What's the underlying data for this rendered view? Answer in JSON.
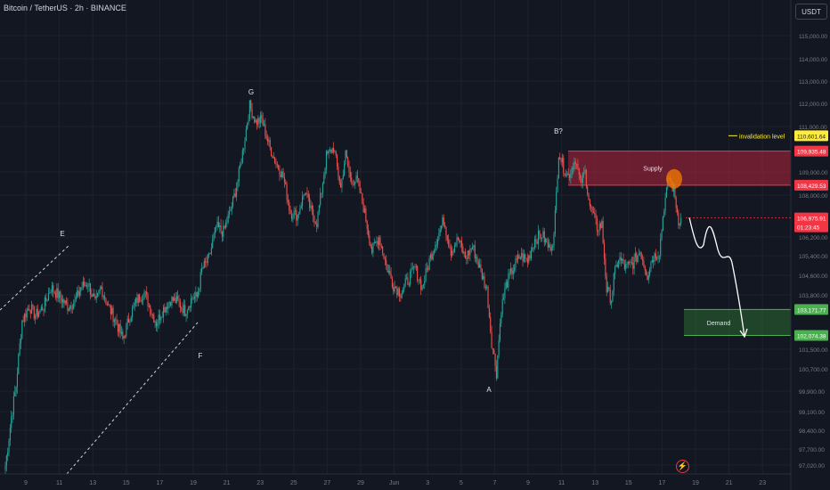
{
  "header": {
    "title": "Bitcoin / TetherUS · 2h · BINANCE",
    "currency_button": "USDT"
  },
  "colors": {
    "background": "#131722",
    "grid": "#1e222d",
    "up": "#26a69a",
    "down": "#ef5350",
    "supply": "#b2253a",
    "demand": "#2e7d32",
    "invalidation": "#ffeb3b",
    "text": "#b2b5be"
  },
  "y_axis": {
    "ticks": [
      "115,000.00",
      "114,000.00",
      "113,000.00",
      "112,000.00",
      "111,000.00",
      "109,000.00",
      "108,000.00",
      "106,200.00",
      "105,400.00",
      "104,600.00",
      "103,800.00",
      "101,500.00",
      "100,700.00",
      "99,900.00",
      "99,100.00",
      "98,400.00",
      "97,700.00",
      "97,020.00"
    ],
    "tick_values": [
      115000,
      114000,
      113000,
      112000,
      111000,
      109000,
      108000,
      106200,
      105400,
      104600,
      103800,
      101500,
      100700,
      99900,
      99100,
      98400,
      97700,
      97020
    ]
  },
  "x_axis": {
    "labels": [
      "9",
      "11",
      "13",
      "15",
      "17",
      "19",
      "21",
      "23",
      "25",
      "27",
      "29",
      "Jun",
      "3",
      "5",
      "7",
      "9",
      "11",
      "13",
      "15",
      "17",
      "19",
      "21",
      "23"
    ]
  },
  "price_tags": [
    {
      "label": "110,601.64",
      "value": 110601.64,
      "kind": "invalidation"
    },
    {
      "label": "109,935.48",
      "value": 109935.48,
      "kind": "supply"
    },
    {
      "label": "108,429.53",
      "value": 108429.53,
      "kind": "supply"
    },
    {
      "label": "106,975.91",
      "value": 106975.91,
      "kind": "current"
    },
    {
      "label": "01:23:45",
      "value": 106600,
      "kind": "countdown"
    },
    {
      "label": "103,171.77",
      "value": 103171.77,
      "kind": "demand"
    },
    {
      "label": "102,074.38",
      "value": 102074.38,
      "kind": "demand"
    }
  ],
  "zones": [
    {
      "label": "Supply",
      "top": 109935.48,
      "bottom": 108429.53,
      "kind": "supply"
    },
    {
      "label": "Demand",
      "top": 103171.77,
      "bottom": 102074.38,
      "kind": "demand"
    }
  ],
  "invalidation": {
    "label": "invalidation level",
    "value": 110601.64
  },
  "wave_labels": [
    "E",
    "F",
    "G",
    "A",
    "B?"
  ],
  "chart_data": {
    "type": "candlestick",
    "symbol": "Bitcoin / TetherUS",
    "timeframe": "2h",
    "exchange": "BINANCE",
    "ylim": [
      96700,
      115900
    ],
    "swing_points": [
      {
        "label": "E",
        "price": 106700
      },
      {
        "label": "F",
        "price": 102400
      },
      {
        "label": "G",
        "price": 111950
      },
      {
        "label": "A",
        "price": 100600
      },
      {
        "label": "B?",
        "price": 110350
      }
    ],
    "current_price": 106975.91,
    "path_keypoints": [
      [
        0,
        97000
      ],
      [
        5,
        98900
      ],
      [
        9,
        100100
      ],
      [
        14,
        102700
      ],
      [
        20,
        103300
      ],
      [
        25,
        102900
      ],
      [
        32,
        103300
      ],
      [
        38,
        104100
      ],
      [
        44,
        103800
      ],
      [
        52,
        103300
      ],
      [
        58,
        103500
      ],
      [
        63,
        104100
      ],
      [
        69,
        104300
      ],
      [
        75,
        103400
      ],
      [
        80,
        104100
      ],
      [
        86,
        103300
      ],
      [
        92,
        102700
      ],
      [
        98,
        101900
      ],
      [
        104,
        102900
      ],
      [
        110,
        103600
      ],
      [
        116,
        103900
      ],
      [
        121,
        103200
      ],
      [
        126,
        102600
      ],
      [
        132,
        103200
      ],
      [
        138,
        103600
      ],
      [
        144,
        103500
      ],
      [
        150,
        103100
      ],
      [
        156,
        103700
      ],
      [
        160,
        103700
      ],
      [
        164,
        104800
      ],
      [
        170,
        105300
      ],
      [
        176,
        106600
      ],
      [
        182,
        106400
      ],
      [
        188,
        107300
      ],
      [
        194,
        108600
      ],
      [
        199,
        110200
      ],
      [
        204,
        111900
      ],
      [
        209,
        111200
      ],
      [
        214,
        111300
      ],
      [
        220,
        110200
      ],
      [
        226,
        109400
      ],
      [
        232,
        108800
      ],
      [
        238,
        107200
      ],
      [
        244,
        107100
      ],
      [
        250,
        108200
      ],
      [
        255,
        107300
      ],
      [
        260,
        106800
      ],
      [
        264,
        108200
      ],
      [
        268,
        109700
      ],
      [
        274,
        110100
      ],
      [
        280,
        108300
      ],
      [
        284,
        109800
      ],
      [
        288,
        108700
      ],
      [
        294,
        108600
      ],
      [
        300,
        107200
      ],
      [
        306,
        105600
      ],
      [
        312,
        106200
      ],
      [
        318,
        105000
      ],
      [
        324,
        104200
      ],
      [
        330,
        103900
      ],
      [
        336,
        104400
      ],
      [
        342,
        104900
      ],
      [
        348,
        104100
      ],
      [
        354,
        105200
      ],
      [
        360,
        106100
      ],
      [
        366,
        106900
      ],
      [
        372,
        105600
      ],
      [
        378,
        106100
      ],
      [
        384,
        105300
      ],
      [
        390,
        105800
      ],
      [
        396,
        104900
      ],
      [
        402,
        104000
      ],
      [
        406,
        101800
      ],
      [
        410,
        100600
      ],
      [
        414,
        103200
      ],
      [
        418,
        104200
      ],
      [
        424,
        104900
      ],
      [
        430,
        105400
      ],
      [
        436,
        105200
      ],
      [
        442,
        106100
      ],
      [
        448,
        106300
      ],
      [
        454,
        105700
      ],
      [
        458,
        106200
      ],
      [
        462,
        109900
      ],
      [
        466,
        109200
      ],
      [
        470,
        108800
      ],
      [
        476,
        109600
      ],
      [
        480,
        108500
      ],
      [
        484,
        109000
      ],
      [
        488,
        107500
      ],
      [
        494,
        106600
      ],
      [
        498,
        106700
      ],
      [
        502,
        104000
      ],
      [
        506,
        103600
      ],
      [
        508,
        104500
      ],
      [
        512,
        105300
      ],
      [
        518,
        104900
      ],
      [
        524,
        105100
      ],
      [
        530,
        105600
      ],
      [
        536,
        104600
      ],
      [
        540,
        105300
      ],
      [
        546,
        105600
      ],
      [
        550,
        107500
      ],
      [
        554,
        108800
      ],
      [
        558,
        108200
      ],
      [
        562,
        106900
      ],
      [
        564,
        106975.91
      ]
    ]
  }
}
